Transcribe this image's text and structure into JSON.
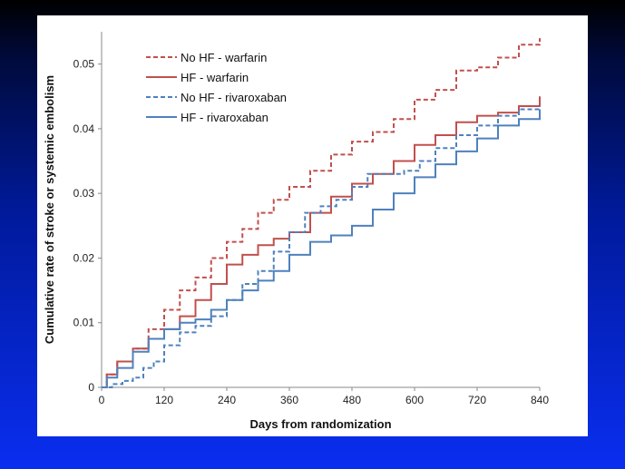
{
  "chart_data": {
    "type": "line",
    "title": "",
    "xlabel": "Days from randomization",
    "ylabel": "Cumulative rate of stroke or systemic embolism",
    "xlim": [
      0,
      840
    ],
    "ylim": [
      0,
      0.055
    ],
    "xticks": [
      "0",
      "120",
      "240",
      "360",
      "480",
      "600",
      "720",
      "840"
    ],
    "yticks": [
      "0",
      "0.01",
      "0.02",
      "0.03",
      "0.04",
      "0.05"
    ],
    "grid": false,
    "legend_position": "top-left",
    "series": [
      {
        "name": "No HF - warfarin",
        "color": "#c0504d",
        "dash": "dashed",
        "points": [
          [
            0,
            0
          ],
          [
            10,
            0.002
          ],
          [
            30,
            0.004
          ],
          [
            60,
            0.006
          ],
          [
            90,
            0.009
          ],
          [
            120,
            0.012
          ],
          [
            150,
            0.015
          ],
          [
            180,
            0.017
          ],
          [
            210,
            0.02
          ],
          [
            240,
            0.0225
          ],
          [
            270,
            0.0245
          ],
          [
            300,
            0.027
          ],
          [
            330,
            0.029
          ],
          [
            360,
            0.031
          ],
          [
            400,
            0.0335
          ],
          [
            440,
            0.036
          ],
          [
            480,
            0.038
          ],
          [
            520,
            0.0395
          ],
          [
            560,
            0.0415
          ],
          [
            600,
            0.0445
          ],
          [
            640,
            0.046
          ],
          [
            680,
            0.049
          ],
          [
            720,
            0.0495
          ],
          [
            760,
            0.051
          ],
          [
            800,
            0.053
          ],
          [
            840,
            0.054
          ]
        ]
      },
      {
        "name": "HF - warfarin",
        "color": "#c0504d",
        "dash": "solid",
        "points": [
          [
            0,
            0
          ],
          [
            10,
            0.002
          ],
          [
            30,
            0.004
          ],
          [
            60,
            0.006
          ],
          [
            90,
            0.0075
          ],
          [
            120,
            0.009
          ],
          [
            150,
            0.011
          ],
          [
            180,
            0.0135
          ],
          [
            210,
            0.016
          ],
          [
            240,
            0.019
          ],
          [
            270,
            0.0205
          ],
          [
            300,
            0.022
          ],
          [
            330,
            0.023
          ],
          [
            360,
            0.024
          ],
          [
            400,
            0.027
          ],
          [
            440,
            0.0295
          ],
          [
            480,
            0.0315
          ],
          [
            520,
            0.033
          ],
          [
            560,
            0.035
          ],
          [
            600,
            0.0375
          ],
          [
            640,
            0.039
          ],
          [
            680,
            0.041
          ],
          [
            720,
            0.042
          ],
          [
            760,
            0.0425
          ],
          [
            800,
            0.0435
          ],
          [
            840,
            0.045
          ]
        ]
      },
      {
        "name": "No HF - rivaroxaban",
        "color": "#4f81bd",
        "dash": "dashed",
        "points": [
          [
            0,
            0
          ],
          [
            20,
            0.0005
          ],
          [
            40,
            0.001
          ],
          [
            60,
            0.0015
          ],
          [
            80,
            0.003
          ],
          [
            100,
            0.004
          ],
          [
            120,
            0.0065
          ],
          [
            150,
            0.0085
          ],
          [
            180,
            0.0095
          ],
          [
            210,
            0.011
          ],
          [
            240,
            0.0135
          ],
          [
            270,
            0.016
          ],
          [
            300,
            0.018
          ],
          [
            330,
            0.021
          ],
          [
            360,
            0.024
          ],
          [
            390,
            0.027
          ],
          [
            420,
            0.028
          ],
          [
            450,
            0.029
          ],
          [
            480,
            0.031
          ],
          [
            510,
            0.033
          ],
          [
            550,
            0.033
          ],
          [
            580,
            0.0335
          ],
          [
            610,
            0.035
          ],
          [
            640,
            0.037
          ],
          [
            680,
            0.039
          ],
          [
            720,
            0.0405
          ],
          [
            760,
            0.042
          ],
          [
            800,
            0.043
          ],
          [
            840,
            0.0435
          ]
        ]
      },
      {
        "name": "HF - rivaroxaban",
        "color": "#4f81bd",
        "dash": "solid",
        "points": [
          [
            0,
            0
          ],
          [
            10,
            0.0015
          ],
          [
            30,
            0.003
          ],
          [
            60,
            0.0055
          ],
          [
            90,
            0.0075
          ],
          [
            120,
            0.009
          ],
          [
            150,
            0.01
          ],
          [
            180,
            0.0105
          ],
          [
            210,
            0.012
          ],
          [
            240,
            0.0135
          ],
          [
            270,
            0.015
          ],
          [
            300,
            0.0165
          ],
          [
            330,
            0.018
          ],
          [
            360,
            0.0205
          ],
          [
            400,
            0.0225
          ],
          [
            440,
            0.0235
          ],
          [
            480,
            0.025
          ],
          [
            520,
            0.0275
          ],
          [
            560,
            0.03
          ],
          [
            600,
            0.0325
          ],
          [
            640,
            0.0345
          ],
          [
            680,
            0.0365
          ],
          [
            720,
            0.0385
          ],
          [
            760,
            0.0405
          ],
          [
            800,
            0.0415
          ],
          [
            840,
            0.043
          ]
        ]
      }
    ]
  }
}
